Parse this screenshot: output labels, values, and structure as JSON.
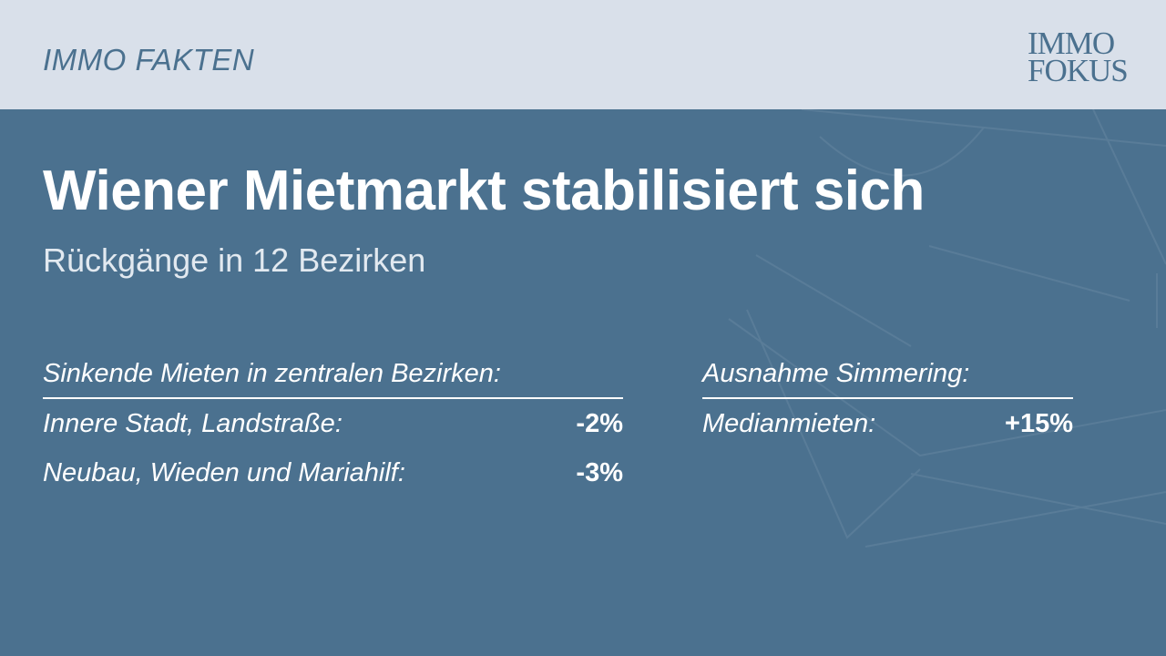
{
  "header": {
    "kicker": "IMMO FAKTEN",
    "logo_line1": "IMMO",
    "logo_line2": "FOKUS"
  },
  "title": "Wiener Mietmarkt stabilisiert sich",
  "subtitle": "Rückgänge in 12 Bezirken",
  "left_block": {
    "heading": "Sinkende Mieten in zentralen Bezirken:",
    "rows": [
      {
        "label": "Innere Stadt, Landstraße:",
        "value": "-2%"
      },
      {
        "label": "Neubau, Wieden und Mariahilf:",
        "value": "-3%"
      }
    ]
  },
  "right_block": {
    "heading": "Ausnahme Simmering:",
    "rows": [
      {
        "label": "Medianmieten:",
        "value": "+15%"
      }
    ]
  },
  "colors": {
    "background": "#4b718f",
    "topbar": "#d9e0ea",
    "accent_text": "#4b718f",
    "text": "#ffffff"
  },
  "icons": {
    "background_decoration": "envelope-outline-watermark"
  }
}
